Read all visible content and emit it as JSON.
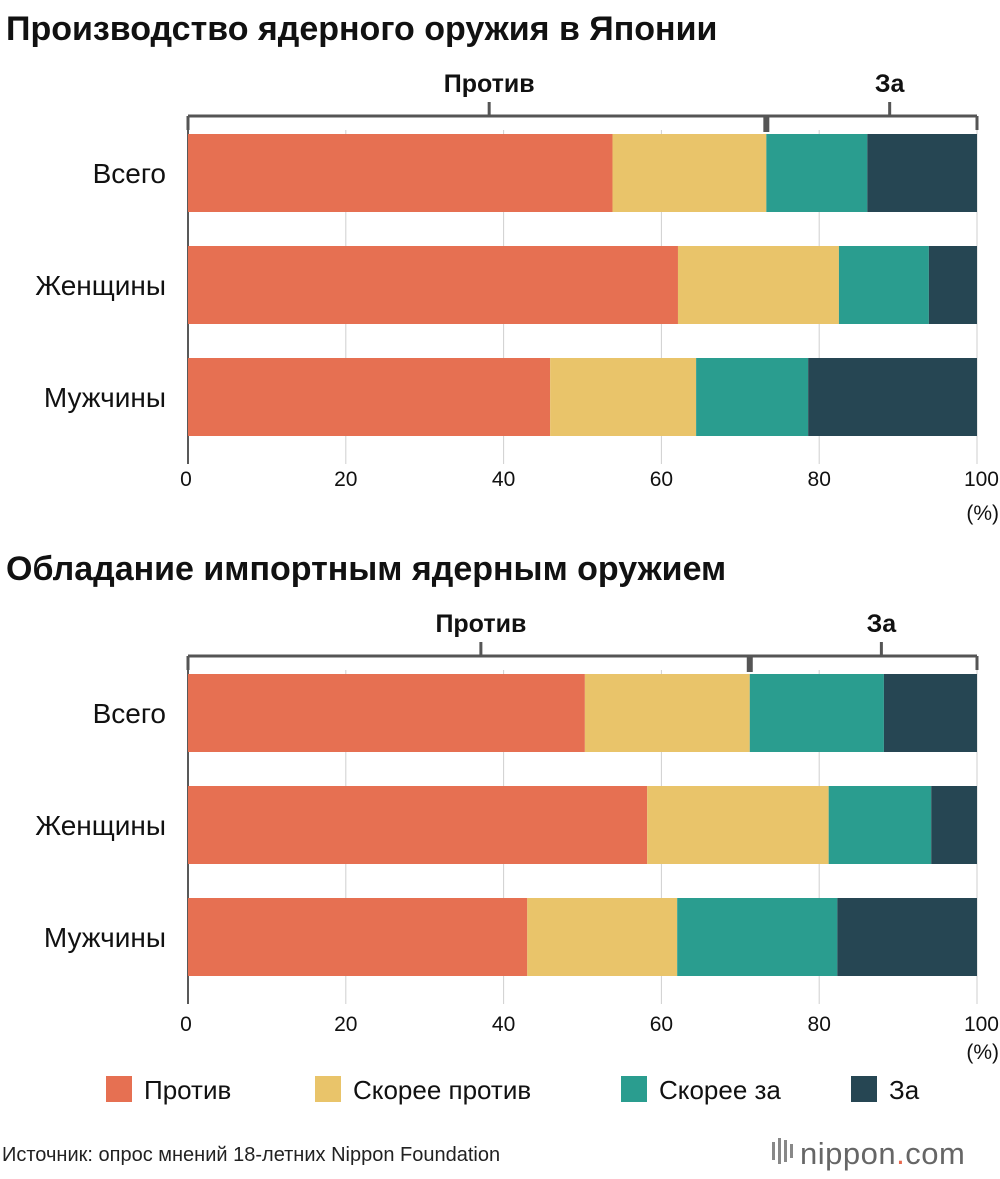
{
  "colors": {
    "against": "#E67052",
    "rather_against": "#E9C46A",
    "rather_for": "#2A9D8F",
    "for": "#264653",
    "grid": "#cfcfcf",
    "bracket": "#555555"
  },
  "legend": [
    {
      "label": "Против",
      "color_key": "against"
    },
    {
      "label": "Скорее против",
      "color_key": "rather_against"
    },
    {
      "label": "Скорее за",
      "color_key": "rather_for"
    },
    {
      "label": "За",
      "color_key": "for"
    }
  ],
  "source": "Источник: опрос мнений 18-летних Nippon Foundation",
  "brand": {
    "name": "nippon",
    "dot": ".",
    "tld": "com"
  },
  "chart_data": [
    {
      "type": "bar",
      "orientation": "horizontal",
      "stacked": true,
      "title": "Производство ядерного оружия в Японии",
      "categories": [
        "Всего",
        "Женщины",
        "Мужчины"
      ],
      "series": [
        {
          "name": "Против",
          "color_key": "against",
          "values": [
            53.8,
            62.1,
            45.9
          ]
        },
        {
          "name": "Скорее против",
          "color_key": "rather_against",
          "values": [
            19.5,
            20.4,
            18.5
          ]
        },
        {
          "name": "Скорее за",
          "color_key": "rather_for",
          "values": [
            12.8,
            11.4,
            14.2
          ]
        },
        {
          "name": "За",
          "color_key": "for",
          "values": [
            13.9,
            6.1,
            21.4
          ]
        }
      ],
      "against_label": "Против",
      "for_label": "За",
      "xlim": [
        0,
        100
      ],
      "xticks": [
        "0",
        "20",
        "40",
        "60",
        "80",
        "100"
      ],
      "xunit": "(%)"
    },
    {
      "type": "bar",
      "orientation": "horizontal",
      "stacked": true,
      "title": "Обладание импортным ядерным оружием",
      "categories": [
        "Всего",
        "Женщины",
        "Мужчины"
      ],
      "series": [
        {
          "name": "Против",
          "color_key": "against",
          "values": [
            50.3,
            58.2,
            43.0
          ]
        },
        {
          "name": "Скорее против",
          "color_key": "rather_against",
          "values": [
            20.9,
            23.0,
            19.0
          ]
        },
        {
          "name": "Скорее за",
          "color_key": "rather_for",
          "values": [
            17.0,
            13.0,
            20.3
          ]
        },
        {
          "name": "За",
          "color_key": "for",
          "values": [
            11.8,
            5.8,
            17.7
          ]
        }
      ],
      "against_label": "Против",
      "for_label": "За",
      "xlim": [
        0,
        100
      ],
      "xticks": [
        "0",
        "20",
        "40",
        "60",
        "80",
        "100"
      ],
      "xunit": "(%)"
    }
  ]
}
